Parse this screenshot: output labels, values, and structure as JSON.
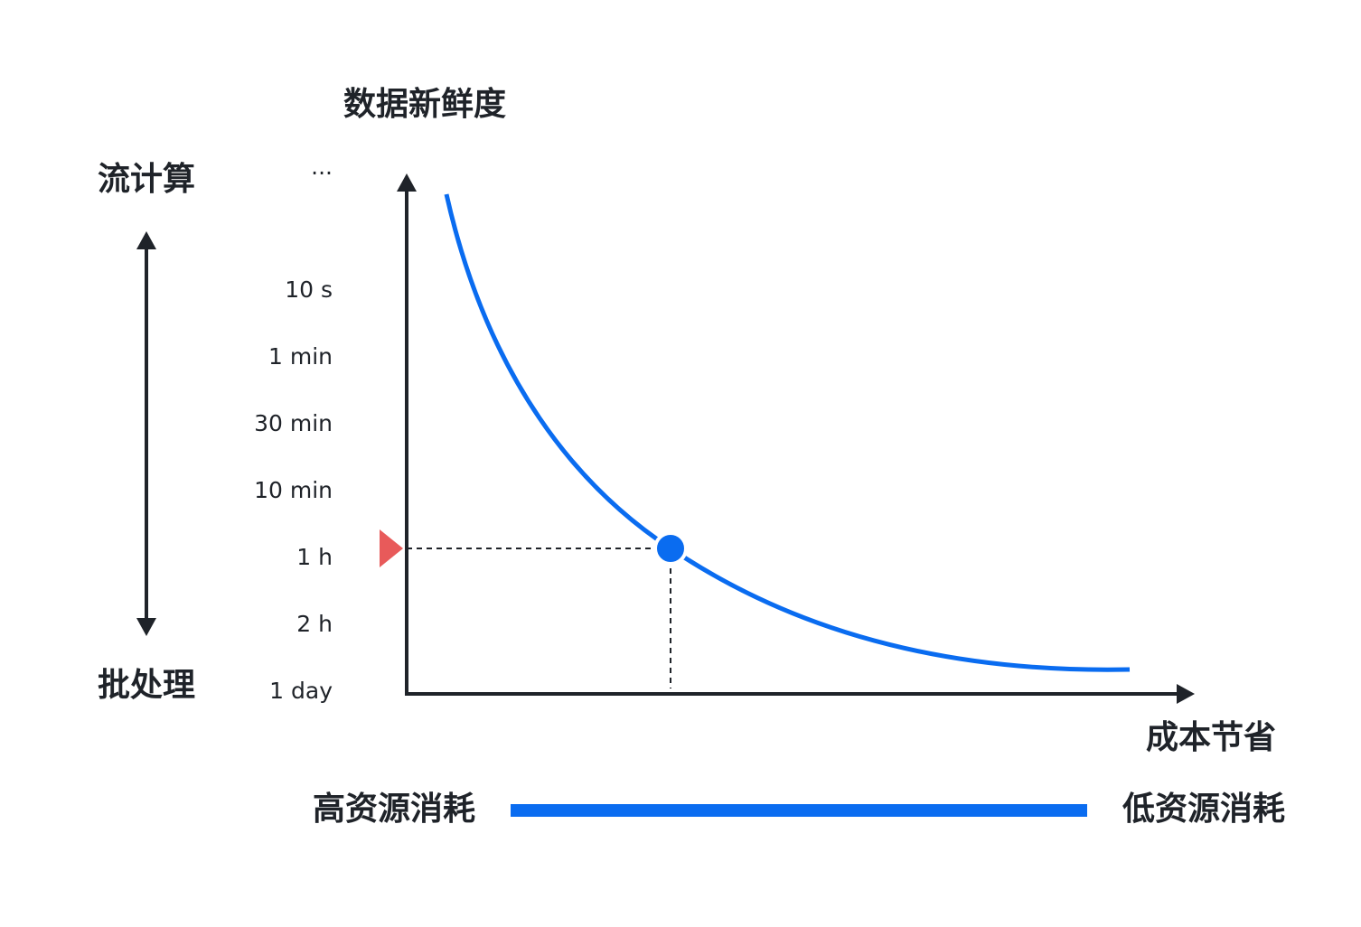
{
  "title": "数据新鲜度",
  "x_axis_label": "成本节省",
  "y_levels": [
    "...",
    "10 s",
    "1 min",
    "30 min",
    "10 min",
    "1 h",
    "2 h",
    "1 day"
  ],
  "left_scale": {
    "top": "流计算",
    "bottom": "批处理"
  },
  "cost_scale": {
    "left": "高资源消耗",
    "right": "低资源消耗"
  }
}
